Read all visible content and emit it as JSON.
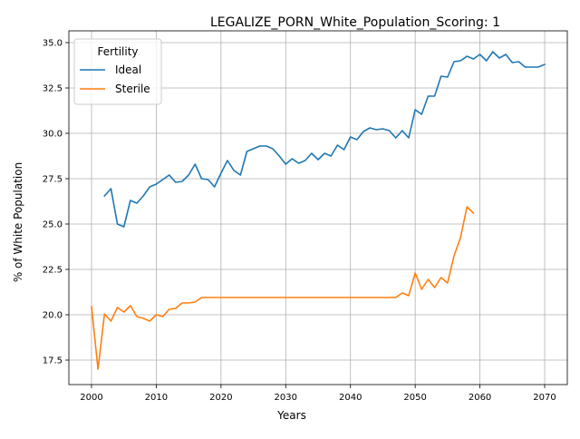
{
  "chart_data": {
    "type": "line",
    "title": "LEGALIZE_PORN_White_Population_Scoring: 1",
    "xlabel": "Years",
    "ylabel": "% of White Population",
    "xlim": [
      1996.5,
      2073.5
    ],
    "ylim": [
      16.15,
      35.65
    ],
    "x_ticks": [
      2000,
      2010,
      2020,
      2030,
      2040,
      2050,
      2060,
      2070
    ],
    "y_ticks": [
      17.5,
      20.0,
      22.5,
      25.0,
      27.5,
      30.0,
      32.5,
      35.0
    ],
    "y_tick_labels": [
      "17.5",
      "20.0",
      "22.5",
      "25.0",
      "27.5",
      "30.0",
      "32.5",
      "35.0"
    ],
    "grid": true,
    "legend": {
      "title": "Fertility",
      "placement": "upper-left"
    },
    "series": [
      {
        "name": "Ideal",
        "color": "#1f77b4",
        "x": [
          2002,
          2003,
          2004,
          2005,
          2006,
          2007,
          2008,
          2009,
          2010,
          2011,
          2012,
          2013,
          2014,
          2015,
          2016,
          2017,
          2018,
          2019,
          2020,
          2021,
          2022,
          2023,
          2024,
          2025,
          2026,
          2027,
          2028,
          2029,
          2030,
          2031,
          2032,
          2033,
          2034,
          2035,
          2036,
          2037,
          2038,
          2039,
          2040,
          2041,
          2042,
          2043,
          2044,
          2045,
          2046,
          2047,
          2048,
          2049,
          2050,
          2051,
          2052,
          2053,
          2054,
          2055,
          2056,
          2057,
          2058,
          2059,
          2060,
          2061,
          2062,
          2063,
          2064,
          2065,
          2066,
          2067,
          2068,
          2069,
          2070
        ],
        "y": [
          26.55,
          26.95,
          25.0,
          24.85,
          26.3,
          26.15,
          26.55,
          27.05,
          27.2,
          27.45,
          27.7,
          27.3,
          27.35,
          27.7,
          28.3,
          27.5,
          27.45,
          27.05,
          27.8,
          28.5,
          27.95,
          27.7,
          29.0,
          29.15,
          29.3,
          29.3,
          29.15,
          28.75,
          28.3,
          28.6,
          28.35,
          28.5,
          28.9,
          28.55,
          28.9,
          28.75,
          29.35,
          29.1,
          29.8,
          29.65,
          30.1,
          30.3,
          30.2,
          30.25,
          30.15,
          29.75,
          30.15,
          29.75,
          31.3,
          31.05,
          32.05,
          32.05,
          33.15,
          33.1,
          33.95,
          34.0,
          34.25,
          34.1,
          34.35,
          34.0,
          34.5,
          34.15,
          34.35,
          33.9,
          33.95,
          33.65,
          33.65,
          33.65,
          33.8
        ]
      },
      {
        "name": "Sterile",
        "color": "#ff7f0e",
        "x": [
          2000,
          2001,
          2002,
          2003,
          2004,
          2005,
          2006,
          2007,
          2008,
          2009,
          2010,
          2011,
          2012,
          2013,
          2014,
          2015,
          2016,
          2017,
          2018,
          2019,
          2020,
          2021,
          2022,
          2023,
          2024,
          2025,
          2026,
          2027,
          2028,
          2029,
          2030,
          2031,
          2032,
          2033,
          2034,
          2035,
          2036,
          2037,
          2038,
          2039,
          2040,
          2041,
          2042,
          2043,
          2044,
          2045,
          2046,
          2047,
          2048,
          2049,
          2050,
          2051,
          2052,
          2053,
          2054,
          2055,
          2056,
          2057,
          2058,
          2059
        ],
        "y": [
          20.45,
          17.0,
          20.05,
          19.65,
          20.4,
          20.15,
          20.5,
          19.9,
          19.8,
          19.65,
          20.0,
          19.9,
          20.3,
          20.35,
          20.65,
          20.65,
          20.7,
          20.95,
          20.95,
          20.95,
          20.95,
          20.95,
          20.95,
          20.95,
          20.95,
          20.95,
          20.95,
          20.95,
          20.95,
          20.95,
          20.95,
          20.95,
          20.95,
          20.95,
          20.95,
          20.95,
          20.95,
          20.95,
          20.95,
          20.95,
          20.95,
          20.95,
          20.95,
          20.95,
          20.95,
          20.95,
          20.95,
          20.95,
          21.2,
          21.05,
          22.3,
          21.4,
          21.95,
          21.5,
          22.05,
          21.75,
          23.25,
          24.25,
          25.95,
          25.6
        ]
      }
    ]
  }
}
